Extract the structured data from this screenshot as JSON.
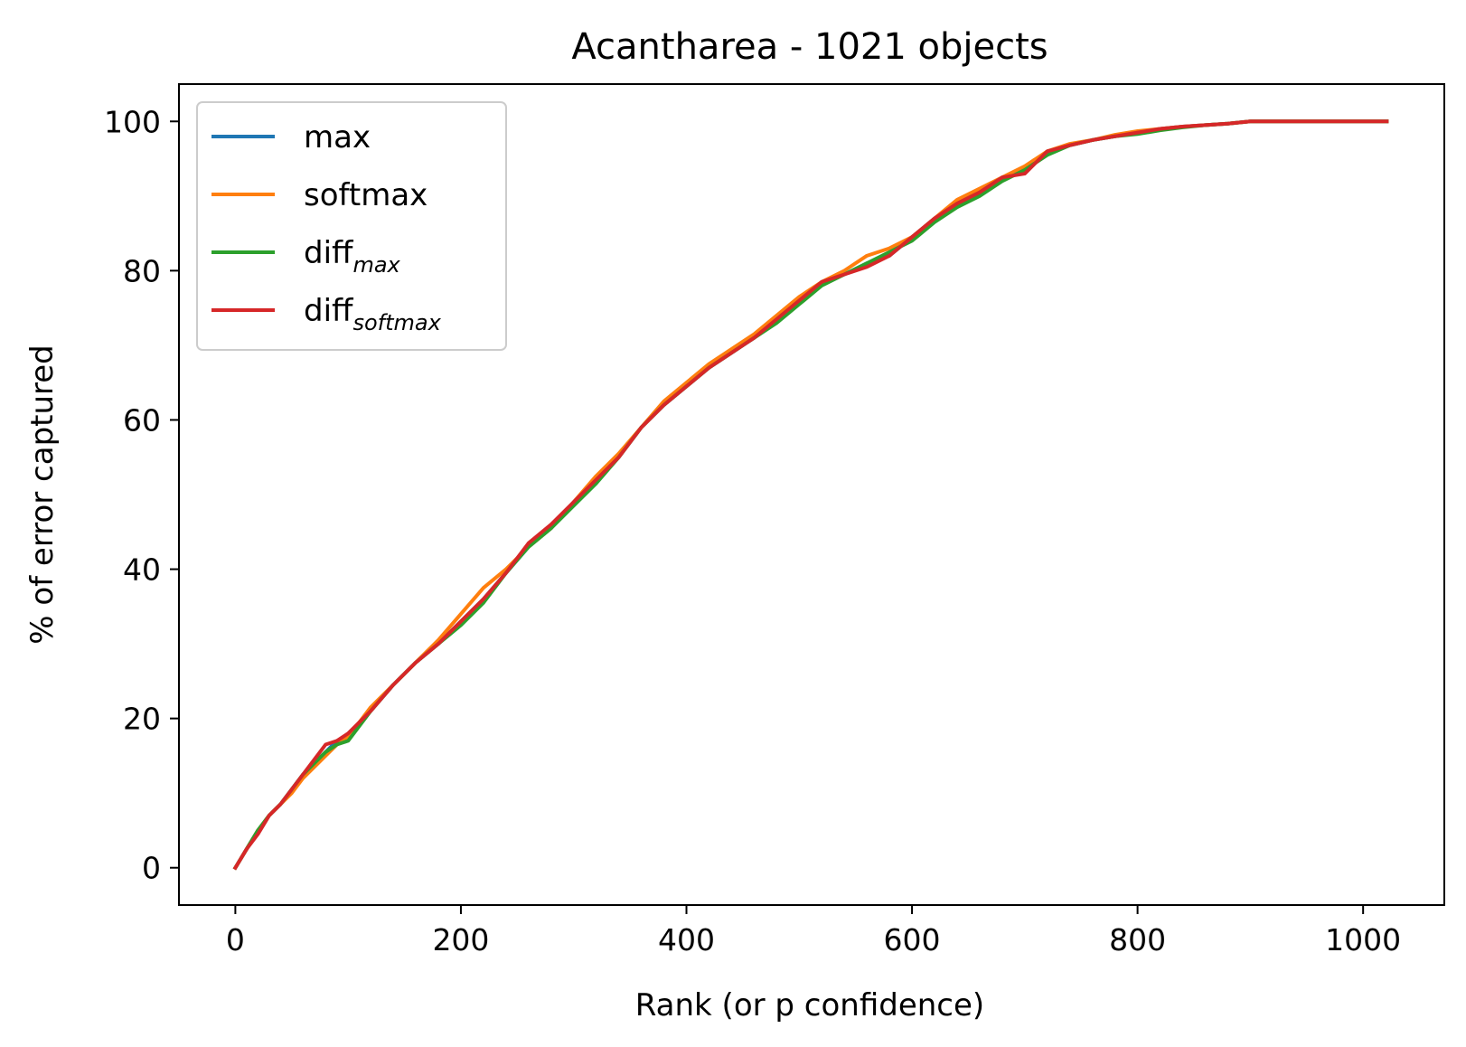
{
  "chart_data": {
    "type": "line",
    "title": "Acantharea - 1021 objects",
    "xlabel": "Rank (or p confidence)",
    "ylabel": "% of error captured",
    "xlim": [
      -50,
      1072
    ],
    "ylim": [
      -5,
      105
    ],
    "xticks": [
      0,
      200,
      400,
      600,
      800,
      1000
    ],
    "yticks": [
      0,
      20,
      40,
      60,
      80,
      100
    ],
    "grid": false,
    "legend_position": "top-left",
    "series": [
      {
        "name": "max",
        "label_main": "max",
        "label_sub": "",
        "color": "#1f77b4",
        "x": [
          0,
          10,
          20,
          30,
          40,
          50,
          60,
          70,
          80,
          90,
          100,
          120,
          140,
          160,
          180,
          200,
          220,
          240,
          260,
          280,
          300,
          320,
          340,
          360,
          380,
          400,
          420,
          440,
          460,
          480,
          500,
          520,
          540,
          560,
          580,
          600,
          620,
          640,
          660,
          680,
          700,
          720,
          740,
          760,
          780,
          800,
          820,
          840,
          860,
          880,
          900,
          950,
          1000,
          1021
        ],
        "y": [
          0,
          2.5,
          5,
          7,
          8.5,
          10.5,
          12.5,
          14,
          15.5,
          17,
          17.5,
          21,
          24.5,
          27.5,
          30,
          33,
          36,
          39.5,
          43,
          45.5,
          49,
          52,
          55,
          59,
          62,
          64.5,
          67,
          69,
          71,
          73.5,
          76,
          78.5,
          79.5,
          81,
          82,
          84.5,
          87,
          89,
          90.5,
          92.5,
          93.5,
          96,
          96.8,
          97.5,
          98,
          98.5,
          99,
          99.3,
          99.5,
          99.7,
          100,
          100,
          100,
          100
        ]
      },
      {
        "name": "softmax",
        "label_main": "softmax",
        "label_sub": "",
        "color": "#ff7f0e",
        "x": [
          0,
          10,
          20,
          30,
          40,
          50,
          60,
          70,
          80,
          90,
          100,
          120,
          140,
          160,
          180,
          200,
          220,
          240,
          260,
          280,
          300,
          320,
          340,
          360,
          380,
          400,
          420,
          440,
          460,
          480,
          500,
          520,
          540,
          560,
          580,
          600,
          620,
          640,
          660,
          680,
          700,
          720,
          740,
          760,
          780,
          800,
          820,
          840,
          860,
          880,
          900,
          950,
          1000,
          1021
        ],
        "y": [
          0,
          2.5,
          5,
          7,
          8.5,
          10,
          12,
          13.5,
          15,
          16.5,
          17.5,
          21.5,
          24.5,
          27.5,
          30.5,
          34,
          37.5,
          40,
          43,
          45.5,
          49,
          52.5,
          55.5,
          59,
          62.5,
          65,
          67.5,
          69.5,
          71.5,
          74,
          76.5,
          78.5,
          80,
          82,
          83,
          84.5,
          87,
          89.5,
          91,
          92.5,
          94,
          96,
          97,
          97.5,
          98.2,
          98.7,
          99,
          99.3,
          99.5,
          99.7,
          100,
          100,
          100,
          100
        ]
      },
      {
        "name": "diff_max",
        "label_main": "diff",
        "label_sub": "max",
        "color": "#2ca02c",
        "x": [
          0,
          10,
          20,
          30,
          40,
          50,
          60,
          70,
          80,
          90,
          100,
          120,
          140,
          160,
          180,
          200,
          220,
          240,
          260,
          280,
          300,
          320,
          340,
          360,
          380,
          400,
          420,
          440,
          460,
          480,
          500,
          520,
          540,
          560,
          580,
          600,
          620,
          640,
          660,
          680,
          700,
          720,
          740,
          760,
          780,
          800,
          820,
          840,
          860,
          880,
          900,
          950,
          1000,
          1021
        ],
        "y": [
          0,
          2.5,
          5,
          7,
          8.5,
          10.5,
          12.5,
          14,
          15.5,
          16.5,
          17,
          21,
          24.5,
          27.5,
          30,
          32.5,
          35.5,
          39.5,
          43,
          45.5,
          48.5,
          51.5,
          55,
          59,
          62,
          64.5,
          67,
          69,
          71,
          73,
          75.5,
          78,
          79.5,
          81,
          82.5,
          84,
          86.5,
          88.5,
          90,
          92,
          93.5,
          95.5,
          96.8,
          97.5,
          98,
          98.3,
          98.8,
          99.2,
          99.5,
          99.7,
          100,
          100,
          100,
          100
        ]
      },
      {
        "name": "diff_softmax",
        "label_main": "diff",
        "label_sub": "softmax",
        "color": "#d62728",
        "x": [
          0,
          10,
          20,
          30,
          40,
          50,
          60,
          70,
          80,
          90,
          100,
          120,
          140,
          160,
          180,
          200,
          220,
          240,
          260,
          280,
          300,
          320,
          340,
          360,
          380,
          400,
          420,
          440,
          460,
          480,
          500,
          520,
          540,
          560,
          580,
          600,
          620,
          640,
          660,
          680,
          700,
          720,
          740,
          760,
          780,
          800,
          820,
          840,
          860,
          880,
          900,
          950,
          1000,
          1021
        ],
        "y": [
          0,
          2.5,
          4.5,
          7,
          8.5,
          10.5,
          12.5,
          14.5,
          16.5,
          17,
          18,
          21,
          24.5,
          27.5,
          30,
          33,
          36,
          39.5,
          43.5,
          46,
          49,
          52,
          55,
          59,
          62,
          64.5,
          67,
          69,
          71,
          73.5,
          76,
          78.5,
          79.5,
          80.5,
          82,
          84.5,
          87,
          89,
          90.5,
          92.5,
          93,
          96,
          96.8,
          97.5,
          98,
          98.5,
          99,
          99.3,
          99.5,
          99.7,
          100,
          100,
          100,
          100
        ]
      }
    ]
  }
}
